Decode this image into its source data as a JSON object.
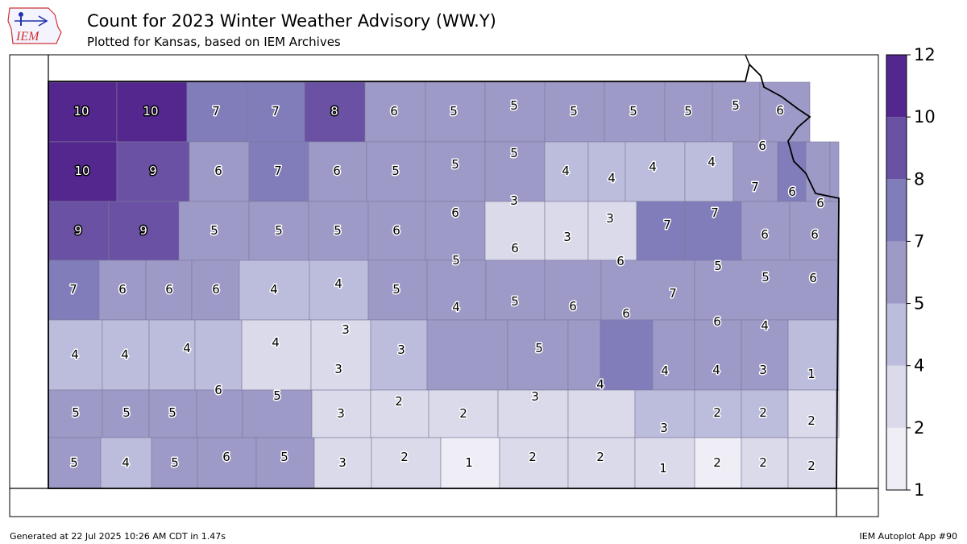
{
  "title": "Count for 2023 Winter Weather Advisory (WW.Y)",
  "subtitle": "Plotted for Kansas, based on IEM Archives",
  "logo_text": "IEM",
  "footer": {
    "generated": "Generated at 22 Jul 2025 10:26 AM CDT in 1.47s",
    "app": "IEM Autoplot App #90"
  },
  "colorbar": {
    "ticks": [
      "1",
      "2",
      "4",
      "5",
      "7",
      "8",
      "10",
      "12"
    ],
    "colors": [
      "#efedf5",
      "#dadaeb",
      "#bcbddc",
      "#9e9ac8",
      "#807dba",
      "#6a51a3",
      "#54278f"
    ]
  },
  "state_outline_color": "#000000",
  "county_rows": [
    [
      10,
      10,
      7,
      7,
      8,
      6,
      5,
      5,
      5,
      5,
      5,
      5,
      6
    ],
    [
      10,
      9,
      6,
      7,
      6,
      5,
      5,
      5,
      4,
      4,
      4,
      4,
      6,
      7,
      6,
      6
    ],
    [
      9,
      9,
      5,
      5,
      5,
      6,
      6,
      3,
      3,
      3,
      7,
      7,
      6,
      6
    ],
    [
      7,
      6,
      6,
      6,
      4,
      4,
      5,
      5,
      6,
      6,
      6,
      5
    ],
    [
      4,
      4,
      4,
      4,
      3,
      3,
      4,
      5,
      5,
      6,
      7,
      5,
      6,
      6,
      4
    ],
    [
      5,
      5,
      5,
      6,
      5,
      3,
      3,
      2,
      2,
      3,
      4,
      4,
      4,
      3,
      1
    ],
    [
      5,
      4,
      5,
      6,
      5,
      3,
      2,
      1,
      2,
      2,
      3,
      1,
      2,
      2,
      2,
      2,
      2,
      2
    ]
  ]
}
